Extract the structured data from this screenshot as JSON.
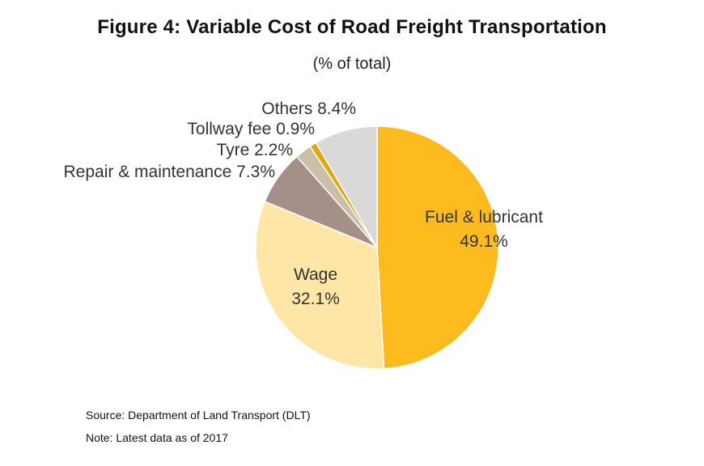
{
  "figure": {
    "title": "Figure 4:  Variable Cost of Road Freight Transportation",
    "subtitle": "(% of total)"
  },
  "chart_data": {
    "type": "pie",
    "title": "Figure 4:  Variable Cost of Road Freight Transportation",
    "subtitle": "(% of total)",
    "slices": [
      {
        "label": "Fuel & lubricant",
        "value": 49.1,
        "value_label": "49.1%",
        "color": "#FDBB1E"
      },
      {
        "label": "Wage",
        "value": 32.1,
        "value_label": "32.1%",
        "color": "#FEE6A7"
      },
      {
        "label": "Repair & maintenance",
        "value": 7.3,
        "value_label": "7.3%",
        "color": "#A58F89"
      },
      {
        "label": "Tyre",
        "value": 2.2,
        "value_label": "2.2%",
        "color": "#C9C0A6"
      },
      {
        "label": "Tollway fee",
        "value": 0.9,
        "value_label": "0.9%",
        "color": "#E0A60C"
      },
      {
        "label": "Others",
        "value": 8.4,
        "value_label": "8.4%",
        "color": "#D9D9D9"
      }
    ],
    "legend": "none"
  },
  "footer": {
    "source": "Source: Department of Land Transport  (DLT)",
    "note": "Note: Latest data as of 2017"
  }
}
